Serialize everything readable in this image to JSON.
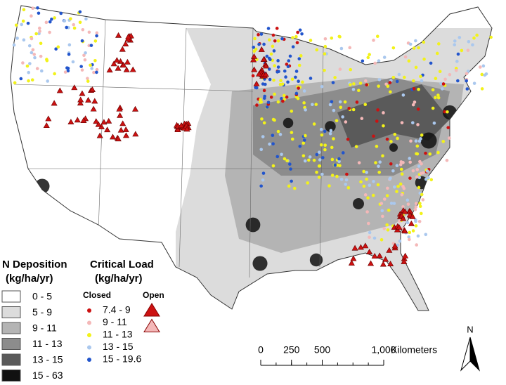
{
  "legend_deposition": {
    "title": "N Deposition",
    "units": "(kg/ha/yr)",
    "classes": [
      {
        "label": "0 - 5",
        "color": "#ffffff"
      },
      {
        "label": "5 - 9",
        "color": "#dcdcdc"
      },
      {
        "label": "9 - 11",
        "color": "#b4b4b4"
      },
      {
        "label": "11 - 13",
        "color": "#8c8c8c"
      },
      {
        "label": "13 - 15",
        "color": "#5a5a5a"
      },
      {
        "label": "15 - 63",
        "color": "#111111"
      }
    ]
  },
  "legend_critical_load": {
    "title": "Critical Load",
    "units": "(kg/ha/yr)",
    "closed": "Closed",
    "open": "Open",
    "classes": [
      {
        "label": "7.4 - 9",
        "color": "#cc1111"
      },
      {
        "label": "9 - 11",
        "color": "#f4b8b8"
      },
      {
        "label": "11 - 13",
        "color": "#f2f21a"
      },
      {
        "label": "13 - 15",
        "color": "#aac8ee"
      },
      {
        "label": "15 - 19.6",
        "color": "#2255cc"
      }
    ]
  },
  "scale_bar": {
    "ticks": [
      0,
      250,
      500,
      {
        "value": 1000,
        "label": "1,000"
      }
    ],
    "unit": "Kilometers"
  },
  "north_arrow": "N"
}
